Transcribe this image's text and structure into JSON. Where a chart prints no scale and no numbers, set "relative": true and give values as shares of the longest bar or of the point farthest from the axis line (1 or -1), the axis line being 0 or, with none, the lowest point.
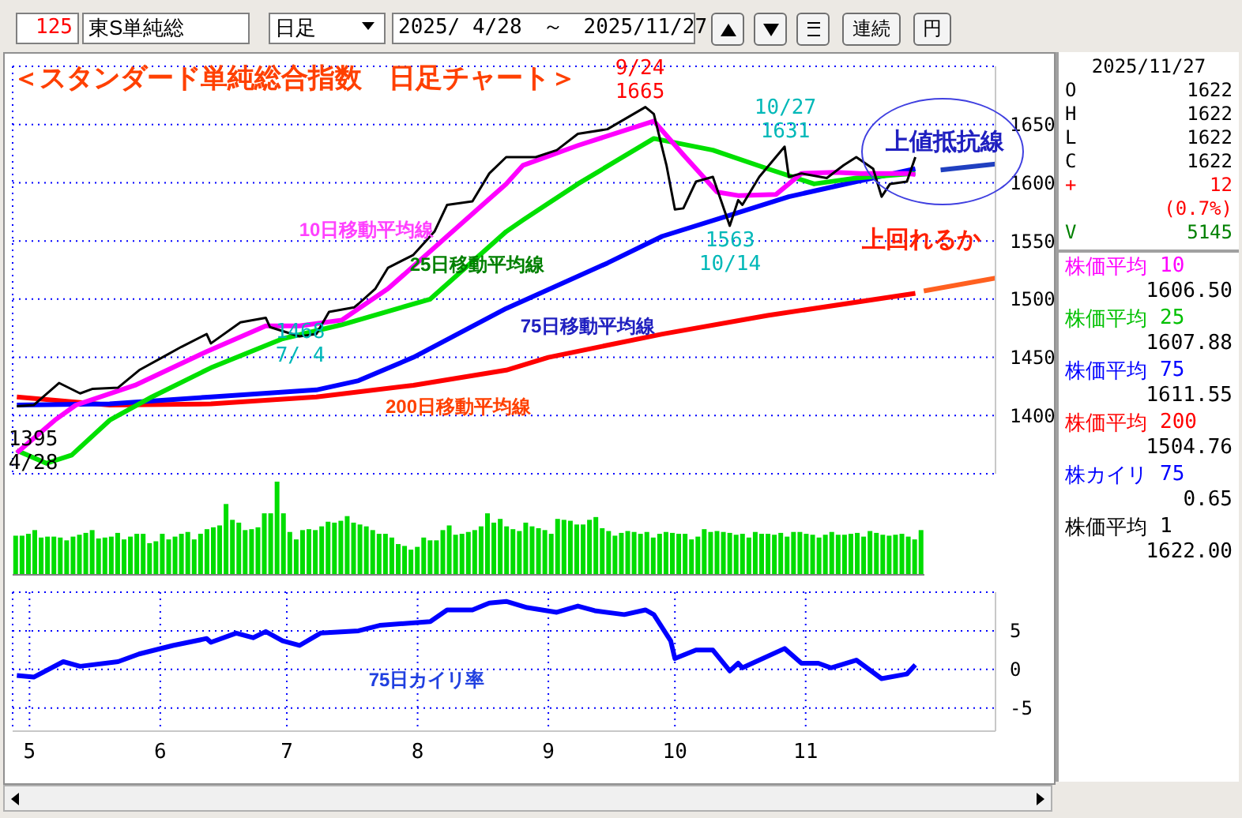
{
  "chart_data": [
    {
      "type": "other",
      "annotations": [
        "125",
        "東S単純総",
        "日足",
        "2025/ 4/28　～　2025/11/27",
        "連続",
        "円"
      ]
    },
    {
      "type": "line",
      "title": "＜スタンダード単純総合指数　日足チャート＞",
      "xlim": [
        "2025-04-27",
        "2025-12-16"
      ],
      "xticks": [
        {
          "value": "2025-05-01",
          "label": null
        },
        {
          "value": "2025-06-01",
          "label": null
        },
        {
          "value": "2025-07-01",
          "label": null
        },
        {
          "value": "2025-08-01",
          "label": null
        },
        {
          "value": "2025-09-01",
          "label": null
        },
        {
          "value": "2025-10-01",
          "label": null
        },
        {
          "value": "2025-11-01",
          "label": null
        }
      ],
      "ylim": [
        1350,
        1700
      ],
      "yticks": [
        1400,
        1450,
        1500,
        1550,
        1600,
        1650
      ],
      "tick_labels": "y",
      "grid": true,
      "series": [
        {
          "color": "#000000",
          "x": [
            "2025-04-28",
            "2025-05-02",
            "2025-05-08",
            "2025-05-13",
            "2025-05-16",
            "2025-05-22",
            "2025-05-27",
            "2025-06-02",
            "2025-06-06",
            "2025-06-12",
            "2025-06-13",
            "2025-06-20",
            "2025-06-26",
            "2025-06-27",
            "2025-07-04",
            "2025-07-08",
            "2025-07-11",
            "2025-07-17",
            "2025-07-18",
            "2025-07-22",
            "2025-07-25",
            "2025-07-31",
            "2025-08-05",
            "2025-08-08",
            "2025-08-14",
            "2025-08-18",
            "2025-08-22",
            "2025-08-29",
            "2025-09-03",
            "2025-09-08",
            "2025-09-15",
            "2025-09-24",
            "2025-09-26",
            "2025-09-29",
            "2025-10-01",
            "2025-10-03",
            "2025-10-06",
            "2025-10-10",
            "2025-10-14",
            "2025-10-16",
            "2025-10-17",
            "2025-10-21",
            "2025-10-27",
            "2025-10-28",
            "2025-10-31",
            "2025-11-06",
            "2025-11-10",
            "2025-11-13",
            "2025-11-17",
            "2025-11-19",
            "2025-11-21",
            "2025-11-25",
            "2025-11-27"
          ],
          "values": [
            1408,
            1409,
            1428,
            1419,
            1423,
            1424,
            1439,
            1451,
            1459,
            1470,
            1462,
            1480,
            1484,
            1476,
            1468,
            1470,
            1489,
            1493,
            1496,
            1509,
            1527,
            1538,
            1558,
            1581,
            1584,
            1608,
            1622,
            1622,
            1628,
            1642,
            1646,
            1665,
            1659,
            1615,
            1577,
            1578,
            1601,
            1605,
            1563,
            1585,
            1581,
            1605,
            1631,
            1605,
            1608,
            1604,
            1615,
            1622,
            1612,
            1588,
            1599,
            1601,
            1622
          ]
        },
        {
          "color": "#ff00ff",
          "x": [
            "2025-04-28",
            "2025-05-07",
            "2025-05-12",
            "2025-05-26",
            "2025-06-12",
            "2025-06-26",
            "2025-07-04",
            "2025-07-14",
            "2025-07-25",
            "2025-08-08",
            "2025-08-22",
            "2025-08-26",
            "2025-09-08",
            "2025-09-26",
            "2025-10-03",
            "2025-10-11",
            "2025-10-16",
            "2025-10-25",
            "2025-10-31",
            "2025-11-08",
            "2025-11-14",
            "2025-11-25",
            "2025-11-27"
          ],
          "values": [
            1368,
            1396,
            1409,
            1426,
            1455,
            1477,
            1477,
            1482,
            1509,
            1554,
            1599,
            1615,
            1632,
            1653,
            1624,
            1592,
            1589,
            1590,
            1608,
            1609,
            1608,
            1608,
            1607
          ]
        },
        {
          "color": "#00e000",
          "x": [
            "2025-04-28",
            "2025-05-05",
            "2025-05-11",
            "2025-05-20",
            "2025-05-30",
            "2025-06-13",
            "2025-06-30",
            "2025-07-14",
            "2025-08-04",
            "2025-08-22",
            "2025-08-26",
            "2025-09-08",
            "2025-09-26",
            "2025-10-10",
            "2025-10-23",
            "2025-11-03",
            "2025-11-13",
            "2025-11-27"
          ],
          "values": [
            1370,
            1359,
            1366,
            1396,
            1416,
            1441,
            1466,
            1478,
            1500,
            1558,
            1568,
            1599,
            1638,
            1628,
            1612,
            1599,
            1604,
            1608
          ]
        },
        {
          "color": "#0000ff",
          "x": [
            "2025-04-28",
            "2025-05-20",
            "2025-06-13",
            "2025-07-08",
            "2025-07-18",
            "2025-07-31",
            "2025-08-22",
            "2025-08-27",
            "2025-09-15",
            "2025-09-28",
            "2025-10-14",
            "2025-10-28",
            "2025-11-13",
            "2025-11-27"
          ],
          "values": [
            1409,
            1410,
            1416,
            1422,
            1430,
            1450,
            1492,
            1500,
            1531,
            1554,
            1572,
            1588,
            1601,
            1612
          ]
        },
        {
          "color": "#ff0000",
          "x": [
            "2025-04-28",
            "2025-05-20",
            "2025-06-13",
            "2025-07-08",
            "2025-07-31",
            "2025-08-22",
            "2025-09-01",
            "2025-09-28",
            "2025-10-23",
            "2025-11-27"
          ],
          "values": [
            1416,
            1409,
            1410,
            1416,
            1426,
            1439,
            1450,
            1470,
            1486,
            1505
          ]
        },
        {
          "color": "#2040c0",
          "x": [
            "2025-12-03",
            "2025-12-16"
          ],
          "values": [
            1611,
            1616
          ]
        },
        {
          "color": "#ff6020",
          "x": [
            "2025-11-29",
            "2025-12-16"
          ],
          "values": [
            1507,
            1518
          ]
        }
      ],
      "annotations": [
        "9/24\n1665",
        "10/27\n1631",
        "1563\n10/14",
        "1468\n7/ 4",
        "1395\n4/28",
        "10日移動平均線",
        "25日移動平均線",
        "75日移動平均線",
        "200日移動平均線",
        "上値抵抗線",
        "上回れるか"
      ]
    },
    {
      "type": "bar",
      "relative": true,
      "color": "#00dd00",
      "categories": [
        null,
        null,
        null,
        null,
        null,
        null,
        null,
        null,
        null,
        null,
        null,
        null,
        null,
        null,
        null,
        null,
        null,
        null,
        null,
        null,
        null,
        null,
        null,
        null,
        null,
        null,
        null,
        null,
        null,
        null,
        null,
        null,
        null,
        null,
        null,
        null,
        null,
        null,
        null,
        null,
        null,
        null,
        null,
        null,
        null,
        null,
        null,
        null,
        null,
        null,
        null,
        null,
        null,
        null,
        null,
        null,
        null,
        null,
        null,
        null,
        null,
        null,
        null,
        null,
        null,
        null,
        null,
        null,
        null,
        null,
        null,
        null,
        null,
        null,
        null,
        null,
        null,
        null,
        null,
        null,
        null,
        null,
        null,
        null,
        null,
        null,
        null,
        null,
        null,
        null,
        null,
        null,
        null,
        null,
        null,
        null,
        null,
        null,
        null,
        null,
        null,
        null,
        null,
        null,
        null,
        null,
        null,
        null,
        null,
        null,
        null,
        null,
        null,
        null,
        null,
        null,
        null,
        null,
        null,
        null,
        null,
        null,
        null,
        null,
        null,
        null,
        null,
        null,
        null,
        null,
        null,
        null,
        null,
        null,
        null,
        null,
        null,
        null,
        null,
        null,
        null,
        null,
        null
      ],
      "values": [
        0.42,
        0.42,
        0.44,
        0.48,
        0.4,
        0.41,
        0.41,
        0.4,
        0.37,
        0.41,
        0.43,
        0.45,
        0.48,
        0.39,
        0.4,
        0.41,
        0.45,
        0.38,
        0.41,
        0.44,
        0.44,
        0.34,
        0.36,
        0.44,
        0.38,
        0.41,
        0.44,
        0.46,
        0.38,
        0.44,
        0.49,
        0.51,
        0.53,
        0.76,
        0.59,
        0.56,
        0.48,
        0.49,
        0.51,
        0.66,
        0.66,
        1,
        0.66,
        0.46,
        0.38,
        0.48,
        0.49,
        0.48,
        0.52,
        0.57,
        0.56,
        0.58,
        0.63,
        0.56,
        0.54,
        0.52,
        0.48,
        0.44,
        0.44,
        0.4,
        0.33,
        0.31,
        0.27,
        0.3,
        0.4,
        0.37,
        0.37,
        0.48,
        0.53,
        0.43,
        0.44,
        0.46,
        0.48,
        0.52,
        0.66,
        0.56,
        0.6,
        0.52,
        0.49,
        0.47,
        0.56,
        0.52,
        0.5,
        0.48,
        0.44,
        0.6,
        0.59,
        0.58,
        0.54,
        0.54,
        0.59,
        0.62,
        0.5,
        0.47,
        0.42,
        0.45,
        0.47,
        0.46,
        0.44,
        0.46,
        0.4,
        0.44,
        0.46,
        0.45,
        0.44,
        0.44,
        0.38,
        0.41,
        0.49,
        0.46,
        0.47,
        0.46,
        0.45,
        0.43,
        0.44,
        0.4,
        0.46,
        0.44,
        0.44,
        0.43,
        0.45,
        0.41,
        0.46,
        0.46,
        0.44,
        0.43,
        0.4,
        0.43,
        0.46,
        0.43,
        0.43,
        0.44,
        0.45,
        0.41,
        0.47,
        0.45,
        0.43,
        0.42,
        0.43,
        0.44,
        0.41,
        0.38,
        0.48
      ]
    },
    {
      "type": "line",
      "color": "#0000ff",
      "xlim": [
        "2025-04-27",
        "2025-12-16"
      ],
      "xticks": [
        {
          "value": "2025-05-01",
          "label": "5"
        },
        {
          "value": "2025-06-01",
          "label": "6"
        },
        {
          "value": "2025-07-01",
          "label": "7"
        },
        {
          "value": "2025-08-01",
          "label": "8"
        },
        {
          "value": "2025-09-01",
          "label": "9"
        },
        {
          "value": "2025-10-01",
          "label": "10"
        },
        {
          "value": "2025-11-01",
          "label": "11"
        }
      ],
      "ylim": [
        -8,
        10
      ],
      "yticks": [
        5,
        0,
        -5
      ],
      "grid": true,
      "x": [
        "2025-04-28",
        "2025-05-02",
        "2025-05-09",
        "2025-05-13",
        "2025-05-22",
        "2025-05-27",
        "2025-06-04",
        "2025-06-12",
        "2025-06-13",
        "2025-06-19",
        "2025-06-23",
        "2025-06-26",
        "2025-06-30",
        "2025-07-04",
        "2025-07-09",
        "2025-07-18",
        "2025-07-23",
        "2025-08-04",
        "2025-08-08",
        "2025-08-14",
        "2025-08-18",
        "2025-08-22",
        "2025-08-27",
        "2025-09-03",
        "2025-09-08",
        "2025-09-12",
        "2025-09-19",
        "2025-09-24",
        "2025-09-26",
        "2025-09-30",
        "2025-10-01",
        "2025-10-06",
        "2025-10-10",
        "2025-10-14",
        "2025-10-16",
        "2025-10-17",
        "2025-10-21",
        "2025-10-27",
        "2025-10-31",
        "2025-11-04",
        "2025-11-07",
        "2025-11-13",
        "2025-11-19",
        "2025-11-25",
        "2025-11-27"
      ],
      "values": [
        -0.8,
        -1,
        1,
        0.4,
        1,
        2,
        3.1,
        4,
        3.5,
        4.7,
        4.1,
        4.9,
        3.7,
        3.1,
        4.7,
        5,
        5.7,
        6.2,
        7.7,
        7.7,
        8.6,
        8.8,
        8,
        7.4,
        8.2,
        7.6,
        7.1,
        7.7,
        7.1,
        3.7,
        1.4,
        2.5,
        2.5,
        -0.2,
        0.8,
        0.2,
        1.2,
        2.7,
        0.8,
        0.8,
        0.2,
        1.2,
        -1.2,
        -0.6,
        0.6
      ],
      "annotations": [
        "75日カイリ率"
      ]
    },
    {
      "type": "other",
      "annotations": [
        "2025/11/27",
        "O",
        "1622",
        "H",
        "1622",
        "L",
        "1622",
        "C",
        "1622",
        "+",
        "12",
        "(0.7%)",
        "V",
        "5145",
        "株価平均",
        "10",
        "1606.50",
        "株価平均",
        "25",
        "1607.88",
        "株価平均",
        "75",
        "1611.55",
        "株価平均",
        "200",
        "1504.76",
        "株カイリ",
        "75",
        "0.65",
        "株価平均",
        "1",
        "1622.00"
      ]
    }
  ]
}
